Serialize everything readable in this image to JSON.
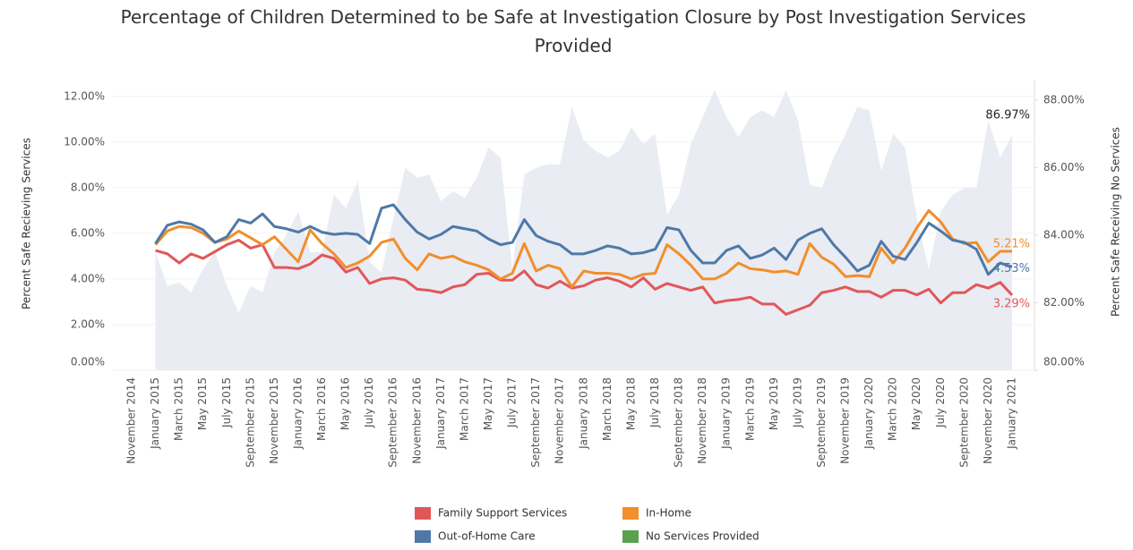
{
  "chart_data": {
    "type": "line",
    "title": "Percentage of Children Determined to be Safe at Investigation Closure by Post Investigation Services Provided",
    "y_label": "Percent Safe Recieving Services",
    "y2_label": "Percent Safe Receiving No Services",
    "categories": [
      "November 2014",
      null,
      "January 2015",
      null,
      "March 2015",
      null,
      "May 2015",
      null,
      "July 2015",
      null,
      "September 2015",
      null,
      "November 2015",
      null,
      "January 2016",
      null,
      "March 2016",
      null,
      "May 2016",
      null,
      "July 2016",
      null,
      "September 2016",
      null,
      "November 2016",
      null,
      "January 2017",
      null,
      "March 2017",
      null,
      "May 2017",
      null,
      "July 2017",
      null,
      "September 2017",
      null,
      "November 2017",
      null,
      "January 2018",
      null,
      "March 2018",
      null,
      "May 2018",
      null,
      "July 2018",
      null,
      "September 2018",
      null,
      "November 2018",
      null,
      "January 2019",
      null,
      "March 2019",
      null,
      "May 2019",
      null,
      "July 2019",
      null,
      "September 2019",
      null,
      "November 2019",
      null,
      "January 2020",
      null,
      "March 2020",
      null,
      "May 2020",
      null,
      "July 2020",
      null,
      "September 2020",
      null,
      "November 2020",
      null,
      "January 2021"
    ],
    "ylim": [
      0,
      12.5
    ],
    "yticks": [
      {
        "value": 0,
        "label": "0.00%"
      },
      {
        "value": 2,
        "label": "2.00%"
      },
      {
        "value": 4,
        "label": "4.00%"
      },
      {
        "value": 6,
        "label": "6.00%"
      },
      {
        "value": 8,
        "label": "8.00%"
      },
      {
        "value": 10,
        "label": "10.00%"
      },
      {
        "value": 12,
        "label": "12.00%"
      }
    ],
    "y2lim": [
      80,
      88.45
    ],
    "y2ticks": [
      {
        "value": 80,
        "label": "80.00%"
      },
      {
        "value": 82,
        "label": "82.00%"
      },
      {
        "value": 84,
        "label": "84.00%"
      },
      {
        "value": 86,
        "label": "86.00%"
      },
      {
        "value": 88,
        "label": "88.00%"
      }
    ],
    "grid": true,
    "series": [
      {
        "name": "Family Support Services",
        "color": "#e15759",
        "values": [
          null,
          null,
          5.25,
          5.1,
          4.7,
          5.1,
          4.9,
          5.2,
          5.5,
          5.7,
          5.35,
          5.5,
          4.5,
          4.5,
          4.45,
          4.65,
          5.05,
          4.9,
          4.3,
          4.5,
          3.8,
          4.0,
          4.05,
          3.95,
          3.55,
          3.5,
          3.4,
          3.65,
          3.75,
          4.2,
          4.25,
          3.95,
          3.95,
          4.35,
          3.75,
          3.6,
          3.9,
          3.6,
          3.7,
          3.95,
          4.05,
          3.9,
          3.65,
          4.05,
          3.55,
          3.8,
          3.65,
          3.5,
          3.65,
          2.95,
          3.05,
          3.1,
          3.2,
          2.9,
          2.9,
          2.45,
          2.65,
          2.85,
          3.4,
          3.5,
          3.65,
          3.45,
          3.45,
          3.2,
          3.5,
          3.5,
          3.3,
          3.55,
          2.95,
          3.4,
          3.4,
          3.75,
          3.6,
          3.85,
          3.29
        ],
        "value_labels": [
          null,
          null,
          null,
          null,
          null,
          null,
          null,
          null,
          null,
          null,
          null,
          null,
          null,
          null,
          null,
          null,
          null,
          null,
          null,
          null,
          null,
          null,
          null,
          null,
          null,
          null,
          null,
          null,
          null,
          null,
          null,
          null,
          null,
          null,
          null,
          null,
          null,
          null,
          null,
          null,
          null,
          null,
          null,
          null,
          null,
          null,
          null,
          null,
          null,
          null,
          null,
          null,
          null,
          null,
          null,
          null,
          null,
          null,
          null,
          null,
          null,
          null,
          null,
          null,
          null,
          null,
          null,
          null,
          null,
          null,
          null,
          null,
          null,
          null,
          "3.29%"
        ]
      },
      {
        "name": "In-Home",
        "color": "#f28e2b",
        "values": [
          null,
          null,
          5.5,
          6.1,
          6.3,
          6.25,
          6.0,
          5.6,
          5.75,
          6.1,
          5.8,
          5.5,
          5.85,
          5.3,
          4.75,
          6.15,
          5.55,
          5.1,
          4.5,
          4.7,
          5.0,
          5.6,
          5.75,
          4.9,
          4.4,
          5.1,
          4.9,
          5.0,
          4.75,
          4.6,
          4.4,
          4.0,
          4.25,
          5.55,
          4.35,
          4.6,
          4.45,
          3.65,
          4.35,
          4.25,
          4.25,
          4.2,
          4.0,
          4.2,
          4.25,
          5.5,
          5.1,
          4.6,
          4.0,
          4.0,
          4.25,
          4.7,
          4.45,
          4.4,
          4.3,
          4.35,
          4.2,
          5.55,
          4.95,
          4.65,
          4.1,
          4.15,
          4.1,
          5.35,
          4.7,
          5.35,
          6.25,
          7.0,
          6.5,
          5.75,
          5.55,
          5.6,
          4.75,
          5.21,
          5.21
        ],
        "value_labels": [
          null,
          null,
          null,
          null,
          null,
          null,
          null,
          null,
          null,
          null,
          null,
          null,
          null,
          null,
          null,
          null,
          null,
          null,
          null,
          null,
          null,
          null,
          null,
          null,
          null,
          null,
          null,
          null,
          null,
          null,
          null,
          null,
          null,
          null,
          null,
          null,
          null,
          null,
          null,
          null,
          null,
          null,
          null,
          null,
          null,
          null,
          null,
          null,
          null,
          null,
          null,
          null,
          null,
          null,
          null,
          null,
          null,
          null,
          null,
          null,
          null,
          null,
          null,
          null,
          null,
          null,
          null,
          null,
          null,
          null,
          null,
          null,
          null,
          null,
          "5.21%"
        ]
      },
      {
        "name": "Out-of-Home Care",
        "color": "#4e79a7",
        "values": [
          null,
          null,
          5.55,
          6.35,
          6.5,
          6.4,
          6.15,
          5.6,
          5.85,
          6.6,
          6.45,
          6.85,
          6.3,
          6.2,
          6.05,
          6.3,
          6.05,
          5.95,
          6.0,
          5.95,
          5.55,
          7.1,
          7.25,
          6.6,
          6.05,
          5.75,
          5.95,
          6.3,
          6.2,
          6.1,
          5.75,
          5.5,
          5.6,
          6.6,
          5.9,
          5.65,
          5.5,
          5.1,
          5.1,
          5.25,
          5.45,
          5.35,
          5.1,
          5.15,
          5.3,
          6.25,
          6.15,
          5.25,
          4.7,
          4.7,
          5.25,
          5.45,
          4.9,
          5.05,
          5.35,
          4.85,
          5.7,
          6.0,
          6.2,
          5.5,
          4.95,
          4.35,
          4.6,
          5.65,
          5.0,
          4.85,
          5.6,
          6.45,
          6.1,
          5.7,
          5.6,
          5.3,
          4.2,
          4.7,
          4.53
        ],
        "value_labels": [
          null,
          null,
          null,
          null,
          null,
          null,
          null,
          null,
          null,
          null,
          null,
          null,
          null,
          null,
          null,
          null,
          null,
          null,
          null,
          null,
          null,
          null,
          null,
          null,
          null,
          null,
          null,
          null,
          null,
          null,
          null,
          null,
          null,
          null,
          null,
          null,
          null,
          null,
          null,
          null,
          null,
          null,
          null,
          null,
          null,
          null,
          null,
          null,
          null,
          null,
          null,
          null,
          null,
          null,
          null,
          null,
          null,
          null,
          null,
          null,
          null,
          null,
          null,
          null,
          null,
          null,
          null,
          null,
          null,
          null,
          null,
          null,
          null,
          null,
          "4.53%"
        ]
      },
      {
        "name": "No Services Provided",
        "color": "#59a14f",
        "fill": "#e9ecf3",
        "axis": "y2",
        "values": [
          null,
          null,
          83.5,
          82.5,
          82.6,
          82.3,
          83.0,
          83.5,
          82.5,
          81.7,
          82.5,
          82.3,
          83.5,
          84.0,
          84.7,
          83.5,
          83.5,
          85.2,
          84.8,
          85.6,
          83.2,
          82.9,
          84.5,
          86.0,
          85.7,
          85.8,
          85.0,
          85.3,
          85.1,
          85.7,
          86.6,
          86.3,
          83.0,
          85.8,
          86.0,
          86.1,
          86.1,
          87.8,
          86.8,
          86.5,
          86.3,
          86.5,
          87.2,
          86.7,
          87.0,
          84.6,
          85.2,
          86.7,
          87.5,
          88.3,
          87.5,
          86.9,
          87.5,
          87.7,
          87.5,
          88.3,
          87.4,
          85.5,
          85.4,
          86.3,
          87.0,
          87.8,
          87.7,
          85.9,
          87.0,
          86.6,
          84.5,
          83.0,
          84.7,
          85.2,
          85.4,
          85.4,
          87.4,
          86.3,
          86.97
        ],
        "value_labels": [
          null,
          null,
          null,
          null,
          null,
          null,
          null,
          null,
          null,
          null,
          null,
          null,
          null,
          null,
          null,
          null,
          null,
          null,
          null,
          null,
          null,
          null,
          null,
          null,
          null,
          null,
          null,
          null,
          null,
          null,
          null,
          null,
          null,
          null,
          null,
          null,
          null,
          null,
          null,
          null,
          null,
          null,
          null,
          null,
          null,
          null,
          null,
          null,
          null,
          null,
          null,
          null,
          null,
          null,
          null,
          null,
          null,
          null,
          null,
          null,
          null,
          null,
          null,
          null,
          null,
          null,
          null,
          null,
          null,
          null,
          null,
          null,
          null,
          null,
          "86.97%"
        ]
      }
    ]
  }
}
